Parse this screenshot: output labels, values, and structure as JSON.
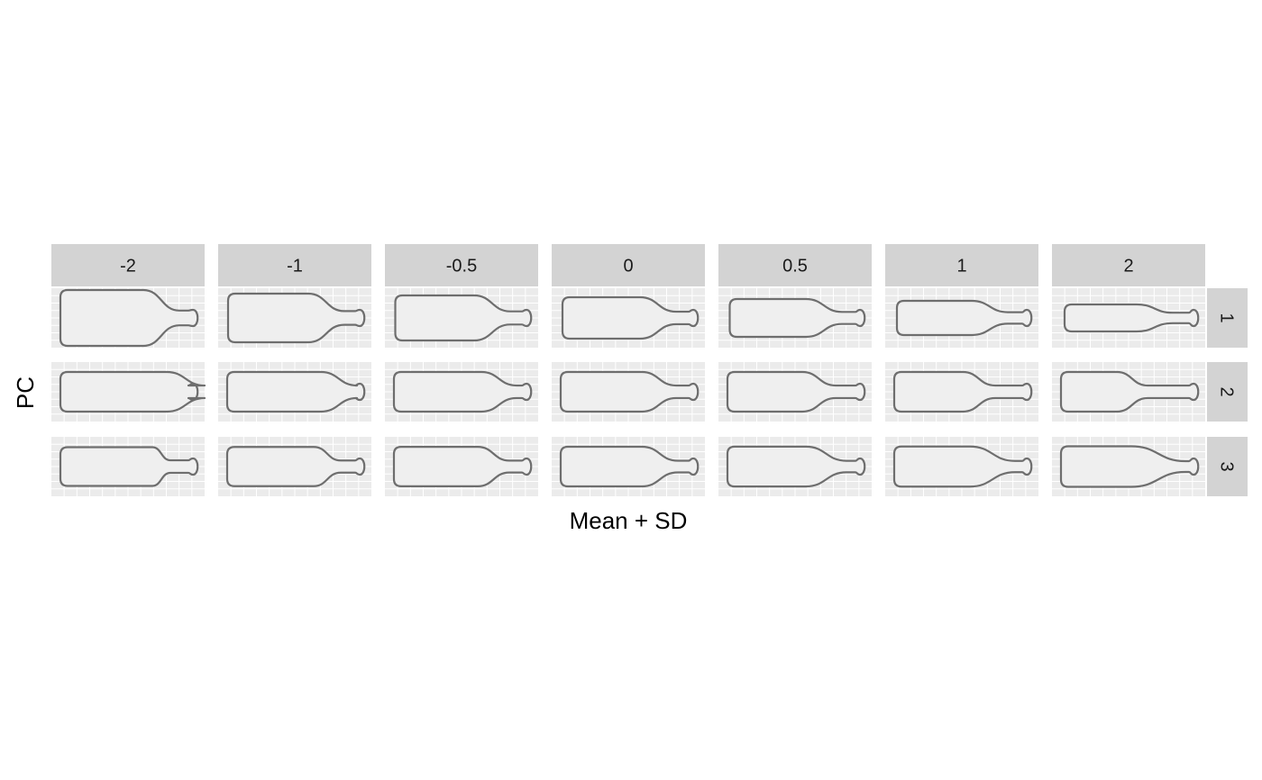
{
  "chart_data": {
    "type": "faceted-shape-outlines",
    "title": "",
    "xlabel": "Mean + SD",
    "ylabel": "PC",
    "columns": [
      "-2",
      "-1",
      "-0.5",
      "0",
      "0.5",
      "1",
      "2"
    ],
    "sd_values": [
      -2,
      -1,
      -0.5,
      0,
      0.5,
      1,
      2
    ],
    "rows": [
      "1",
      "2",
      "3"
    ],
    "grid": true,
    "shape": "bottle outline",
    "colors": {
      "panel_background": "#ebebeb",
      "grid": "#ffffff",
      "strip_background": "#d3d3d3",
      "outline_stroke": "#6e6e6e",
      "outline_fill": "#efefef"
    }
  }
}
